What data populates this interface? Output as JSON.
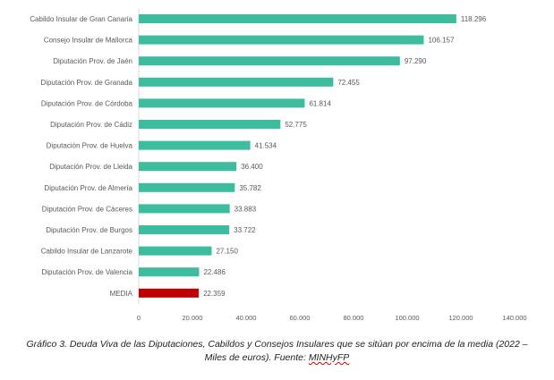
{
  "caption": {
    "text": "Gráfico 3. Deuda Viva de las Diputaciones, Cabildos y Consejos Insulares que se sitúan por encima de la media (2022 – Miles de euros). Fuente: ",
    "source": "MINHyFP"
  },
  "colors": {
    "bar": "#3dbd9d",
    "highlight_bar": "#c00000",
    "text": "#595959",
    "axis": "#d9d9d9"
  },
  "chart_data": {
    "type": "bar",
    "orientation": "horizontal",
    "title": "",
    "xlabel": "",
    "ylabel": "",
    "xlim": [
      0,
      140000
    ],
    "xticks": [
      0,
      20000,
      40000,
      60000,
      80000,
      100000,
      120000,
      140000
    ],
    "xtick_labels": [
      "0",
      "20.000",
      "40.000",
      "60.000",
      "80.000",
      "100.000",
      "120.000",
      "140.000"
    ],
    "grid": false,
    "categories": [
      "Cabildo Insular de Gran Canaria",
      "Consejo Insular de Mallorca",
      "Diputación Prov. de Jaén",
      "Diputación Prov. de Granada",
      "Diputación Prov. de Córdoba",
      "Diputación Prov. de Cádiz",
      "Diputación Prov. de Huelva",
      "Diputación Prov. de Lleida",
      "Diputación Prov. de Almería",
      "Diputación Prov. de Cáceres",
      "Diputación Prov. de Burgos",
      "Cabildo Insular de Lanzarote",
      "Diputación Prov. de Valencia",
      "MEDIA"
    ],
    "values": [
      118296,
      106157,
      97290,
      72455,
      61814,
      52775,
      41534,
      36400,
      35782,
      33883,
      33722,
      27150,
      22486,
      22359
    ],
    "value_labels": [
      "118.296",
      "106.157",
      "97.290",
      "72.455",
      "61.814",
      "52.775",
      "41.534",
      "36.400",
      "35.782",
      "33.883",
      "33.722",
      "27.150",
      "22.486",
      "22.359"
    ],
    "highlight_category": "MEDIA"
  }
}
